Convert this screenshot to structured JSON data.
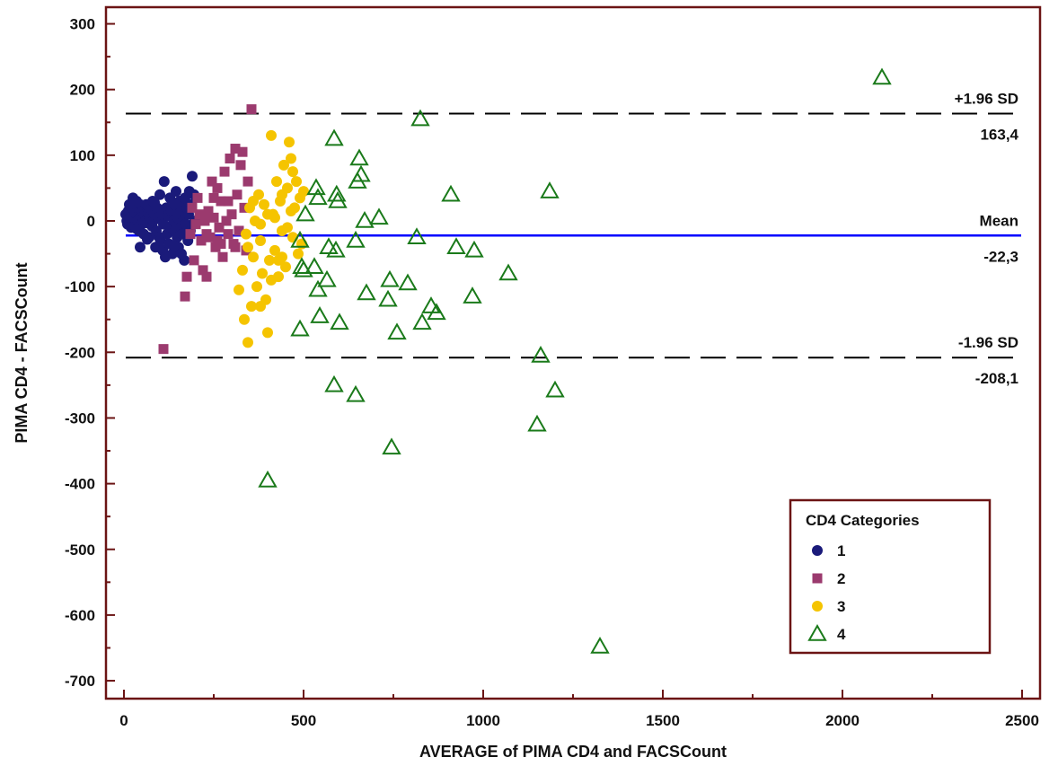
{
  "chart_data": {
    "type": "scatter",
    "title": "",
    "xlabel": "AVERAGE of PIMA CD4 and FACSCount",
    "ylabel": "PIMA CD4 - FACSCount",
    "xlim": [
      -50,
      2500
    ],
    "ylim": [
      -720,
      320
    ],
    "xticks": [
      0,
      500,
      1000,
      1500,
      2000,
      2500
    ],
    "yticks": [
      300,
      200,
      100,
      0,
      -100,
      -200,
      -300,
      -400,
      -500,
      -600,
      -700
    ],
    "grid": false,
    "legend": {
      "title": "CD4 Categories",
      "position": "bottom-right"
    },
    "reference_lines": [
      {
        "name": "+1.96 SD",
        "value_label": "163,4",
        "y": 163.4,
        "style": "dashed",
        "color": "#000000"
      },
      {
        "name": "Mean",
        "value_label": "-22,3",
        "y": -22.3,
        "style": "solid",
        "color": "#0000ff"
      },
      {
        "name": "-1.96 SD",
        "value_label": "-208,1",
        "y": -208.1,
        "style": "dashed",
        "color": "#000000"
      }
    ],
    "series": [
      {
        "name": "1",
        "marker": "circle",
        "color": "#1a1a7a",
        "points": [
          [
            5,
            10
          ],
          [
            8,
            0
          ],
          [
            10,
            -5
          ],
          [
            12,
            15
          ],
          [
            15,
            25
          ],
          [
            18,
            5
          ],
          [
            20,
            -10
          ],
          [
            22,
            20
          ],
          [
            25,
            35
          ],
          [
            28,
            5
          ],
          [
            30,
            -8
          ],
          [
            32,
            12
          ],
          [
            35,
            30
          ],
          [
            38,
            0
          ],
          [
            40,
            18
          ],
          [
            42,
            -15
          ],
          [
            45,
            25
          ],
          [
            48,
            8
          ],
          [
            50,
            -5
          ],
          [
            52,
            15
          ],
          [
            55,
            -20
          ],
          [
            58,
            10
          ],
          [
            60,
            0
          ],
          [
            62,
            25
          ],
          [
            65,
            -3
          ],
          [
            68,
            12
          ],
          [
            70,
            -25
          ],
          [
            72,
            5
          ],
          [
            75,
            18
          ],
          [
            78,
            -8
          ],
          [
            80,
            30
          ],
          [
            82,
            0
          ],
          [
            85,
            10
          ],
          [
            88,
            -40
          ],
          [
            90,
            -15
          ],
          [
            92,
            20
          ],
          [
            95,
            5
          ],
          [
            98,
            -25
          ],
          [
            100,
            40
          ],
          [
            102,
            -30
          ],
          [
            105,
            10
          ],
          [
            108,
            -45
          ],
          [
            110,
            -5
          ],
          [
            112,
            60
          ],
          [
            115,
            -55
          ],
          [
            118,
            20
          ],
          [
            120,
            -20
          ],
          [
            122,
            8
          ],
          [
            125,
            -35
          ],
          [
            128,
            35
          ],
          [
            130,
            -10
          ],
          [
            132,
            15
          ],
          [
            135,
            -50
          ],
          [
            138,
            0
          ],
          [
            140,
            25
          ],
          [
            142,
            -15
          ],
          [
            145,
            45
          ],
          [
            148,
            -25
          ],
          [
            150,
            5
          ],
          [
            152,
            -40
          ],
          [
            155,
            30
          ],
          [
            158,
            -10
          ],
          [
            160,
            15
          ],
          [
            162,
            -20
          ],
          [
            165,
            0
          ],
          [
            168,
            -60
          ],
          [
            170,
            35
          ],
          [
            172,
            -5
          ],
          [
            175,
            20
          ],
          [
            178,
            -30
          ],
          [
            180,
            10
          ],
          [
            182,
            45
          ],
          [
            185,
            -15
          ],
          [
            188,
            25
          ],
          [
            190,
            68
          ],
          [
            192,
            -5
          ],
          [
            195,
            40
          ],
          [
            198,
            0
          ],
          [
            35,
            -12
          ],
          [
            45,
            -40
          ],
          [
            65,
            -28
          ],
          [
            85,
            28
          ],
          [
            140,
            -38
          ],
          [
            160,
            -50
          ]
        ]
      },
      {
        "name": "2",
        "marker": "square",
        "color": "#9b3a6e",
        "points": [
          [
            110,
            -195
          ],
          [
            170,
            -115
          ],
          [
            175,
            -85
          ],
          [
            185,
            -20
          ],
          [
            190,
            20
          ],
          [
            195,
            -60
          ],
          [
            200,
            -5
          ],
          [
            205,
            35
          ],
          [
            210,
            10
          ],
          [
            215,
            -30
          ],
          [
            220,
            -75
          ],
          [
            225,
            0
          ],
          [
            230,
            -85
          ],
          [
            235,
            15
          ],
          [
            240,
            -25
          ],
          [
            245,
            60
          ],
          [
            250,
            5
          ],
          [
            255,
            -40
          ],
          [
            260,
            50
          ],
          [
            265,
            -10
          ],
          [
            270,
            30
          ],
          [
            275,
            -55
          ],
          [
            280,
            75
          ],
          [
            285,
            0
          ],
          [
            290,
            -20
          ],
          [
            295,
            95
          ],
          [
            300,
            10
          ],
          [
            305,
            -35
          ],
          [
            310,
            110
          ],
          [
            315,
            40
          ],
          [
            320,
            -15
          ],
          [
            325,
            85
          ],
          [
            330,
            105
          ],
          [
            335,
            20
          ],
          [
            340,
            -45
          ],
          [
            345,
            60
          ],
          [
            355,
            170
          ],
          [
            230,
            -20
          ],
          [
            260,
            -30
          ],
          [
            290,
            30
          ],
          [
            310,
            -40
          ],
          [
            250,
            35
          ],
          [
            270,
            -35
          ]
        ]
      },
      {
        "name": "3",
        "marker": "circle",
        "color": "#f5c400",
        "points": [
          [
            320,
            -105
          ],
          [
            330,
            -75
          ],
          [
            335,
            -150
          ],
          [
            340,
            -20
          ],
          [
            345,
            -185
          ],
          [
            350,
            20
          ],
          [
            355,
            -130
          ],
          [
            360,
            -55
          ],
          [
            365,
            0
          ],
          [
            370,
            -100
          ],
          [
            375,
            40
          ],
          [
            380,
            -30
          ],
          [
            385,
            -80
          ],
          [
            390,
            25
          ],
          [
            395,
            -120
          ],
          [
            400,
            -170
          ],
          [
            405,
            -60
          ],
          [
            410,
            130
          ],
          [
            415,
            10
          ],
          [
            420,
            -45
          ],
          [
            425,
            60
          ],
          [
            430,
            -85
          ],
          [
            435,
            30
          ],
          [
            440,
            -15
          ],
          [
            445,
            85
          ],
          [
            450,
            -70
          ],
          [
            455,
            50
          ],
          [
            460,
            120
          ],
          [
            465,
            95
          ],
          [
            470,
            -25
          ],
          [
            475,
            20
          ],
          [
            480,
            60
          ],
          [
            485,
            -50
          ],
          [
            490,
            35
          ],
          [
            495,
            -35
          ],
          [
            500,
            45
          ],
          [
            380,
            -5
          ],
          [
            420,
            5
          ],
          [
            440,
            40
          ],
          [
            360,
            30
          ],
          [
            400,
            10
          ],
          [
            455,
            -10
          ],
          [
            470,
            75
          ],
          [
            440,
            -55
          ],
          [
            345,
            -40
          ],
          [
            380,
            -130
          ],
          [
            410,
            -90
          ],
          [
            430,
            -60
          ],
          [
            465,
            15
          ]
        ]
      },
      {
        "name": "4",
        "marker": "triangle-open",
        "color": "#1a7a1a",
        "points": [
          [
            400,
            -395
          ],
          [
            490,
            -165
          ],
          [
            490,
            -30
          ],
          [
            495,
            -70
          ],
          [
            500,
            -75
          ],
          [
            505,
            10
          ],
          [
            530,
            -70
          ],
          [
            535,
            50
          ],
          [
            540,
            35
          ],
          [
            540,
            -105
          ],
          [
            545,
            -145
          ],
          [
            565,
            -90
          ],
          [
            570,
            -40
          ],
          [
            585,
            -250
          ],
          [
            585,
            125
          ],
          [
            590,
            -45
          ],
          [
            592,
            40
          ],
          [
            595,
            30
          ],
          [
            600,
            -155
          ],
          [
            645,
            -30
          ],
          [
            645,
            -265
          ],
          [
            650,
            60
          ],
          [
            655,
            95
          ],
          [
            660,
            70
          ],
          [
            670,
            0
          ],
          [
            675,
            -110
          ],
          [
            710,
            5
          ],
          [
            735,
            -120
          ],
          [
            740,
            -90
          ],
          [
            745,
            -345
          ],
          [
            760,
            -170
          ],
          [
            790,
            -95
          ],
          [
            815,
            -25
          ],
          [
            825,
            155
          ],
          [
            830,
            -155
          ],
          [
            855,
            -130
          ],
          [
            870,
            -140
          ],
          [
            910,
            40
          ],
          [
            925,
            -40
          ],
          [
            970,
            -115
          ],
          [
            975,
            -45
          ],
          [
            1070,
            -80
          ],
          [
            1150,
            -310
          ],
          [
            1160,
            -205
          ],
          [
            1185,
            45
          ],
          [
            1200,
            -258
          ],
          [
            1325,
            -648
          ],
          [
            2110,
            218
          ]
        ]
      }
    ]
  }
}
